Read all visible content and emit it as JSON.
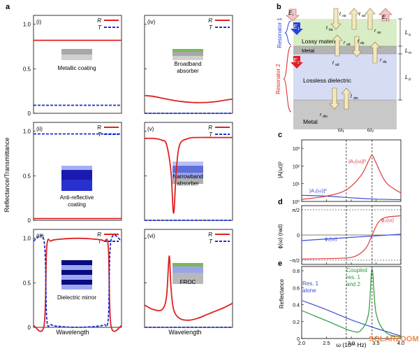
{
  "panel_labels": {
    "a": "a",
    "b": "b",
    "c": "c",
    "d": "d",
    "e": "e"
  },
  "colors": {
    "R": "#e02020",
    "T": "#1a2fd0",
    "res1": "#3a4fd8",
    "res2": "#e03a3a",
    "coupled": "#2a9a3a",
    "axis": "#000000",
    "watermark": "#e8752a"
  },
  "panel_a": {
    "ylabel": "Reflectance/Transmittance",
    "xlabel": "Wavelength",
    "legend": {
      "R": "R",
      "T": "T"
    },
    "yticks": [
      "0",
      "0.5",
      "1.0"
    ],
    "subplots": [
      {
        "label": "(i)",
        "caption": "Metallic coating"
      },
      {
        "label": "(iv)",
        "caption": "Broadband absorber"
      },
      {
        "label": "(ii)",
        "caption": "Anti-reflective coating"
      },
      {
        "label": "(v)",
        "caption": "Narrowband absorber"
      },
      {
        "label": "(iii)",
        "caption": "Dielectric mirror"
      },
      {
        "label": "(vi)",
        "caption": "FROC"
      }
    ]
  },
  "panel_b": {
    "E_i": "E",
    "E_i_sub": "i",
    "E_r": "E",
    "E_r_sub": "r",
    "E_1": "E",
    "E_1_sub": "1",
    "E_2": "E",
    "E_2_sub": "2",
    "t_oa": "t",
    "t_oa_sub": "oa",
    "t_ao": "t",
    "t_ao_sub": "ao",
    "r_ao": "r",
    "r_ao_sub": "ao",
    "r_oa": "r",
    "r_oa_sub": "oa",
    "t_ba": "t",
    "t_ba_sub": "ba",
    "r_ad": "r",
    "r_ad_sub": "ad",
    "t_da": "t",
    "t_da_sub": "da",
    "t_ad": "t",
    "t_ad_sub": "ad",
    "r_da": "r",
    "r_da_sub": "da",
    "t_dm": "t",
    "t_dm_sub": "dm",
    "r_dm": "r",
    "r_dm_sub": "dm",
    "lossy": "Lossy material",
    "metal_thin": "Metal",
    "lossless": "Lossless dielectric",
    "metal_sub": "Metal",
    "resonator1": "Resonator 1",
    "resonator2": "Resonator 2",
    "La": "L",
    "La_sub": "a",
    "Lm": "L",
    "Lm_sub": "m",
    "Ld": "L",
    "Ld_sub": "d"
  },
  "panel_c": {
    "ylabel": "|A(ω)|²",
    "yticks": [
      "10⁰",
      "10¹",
      "10²",
      "10³"
    ],
    "omega1": "ω₁",
    "omega2": "ω₂",
    "A1_label": "|A₁(ω)|²",
    "A2_label": "|A₂(ω)|²"
  },
  "panel_d": {
    "ylabel": "ϕ(ω) (rad)",
    "yticks": [
      "π/2",
      "0",
      "−π/2"
    ],
    "phi1_label": "ϕ₁(ω)",
    "phi2_label": "ϕ₂(ω)"
  },
  "panel_e": {
    "ylabel": "Reflectance",
    "xlabel": "ω (10¹⁵ Hz)",
    "yticks": [
      "0",
      "0.2",
      "0.4",
      "0.6",
      "0.8"
    ],
    "xticks": [
      "2.0",
      "2.5",
      "3.0",
      "3.5",
      "4.0"
    ],
    "res1_line1": "Res. 1",
    "res1_line2": "alone",
    "coupled_line1": "Coupled",
    "coupled_line2": "res. 1",
    "coupled_line3": "and 2"
  },
  "watermark": "SOLARZOOM",
  "chart_data": [
    {
      "type": "line",
      "title": "(i) Metallic coating",
      "xlabel": "Wavelength",
      "ylabel": "Reflectance/Transmittance",
      "ylim": [
        0,
        1.1
      ],
      "x": [
        0,
        0.25,
        0.5,
        0.75,
        1.0
      ],
      "series": [
        {
          "name": "R",
          "values": [
            0.82,
            0.82,
            0.82,
            0.82,
            0.82
          ]
        },
        {
          "name": "T",
          "values": [
            0.09,
            0.09,
            0.09,
            0.09,
            0.09
          ]
        }
      ]
    },
    {
      "type": "line",
      "title": "(iv) Broadband absorber",
      "xlabel": "Wavelength",
      "ylabel": "Reflectance/Transmittance",
      "ylim": [
        0,
        1.1
      ],
      "x": [
        0,
        0.1,
        0.2,
        0.3,
        0.4,
        0.5,
        0.6,
        0.7,
        0.8,
        0.9,
        1.0
      ],
      "series": [
        {
          "name": "R",
          "values": [
            0.2,
            0.19,
            0.17,
            0.15,
            0.135,
            0.125,
            0.12,
            0.122,
            0.13,
            0.145,
            0.16
          ]
        },
        {
          "name": "T",
          "values": [
            0.0,
            0.0,
            0.0,
            0.0,
            0.0,
            0.0,
            0.0,
            0.0,
            0.0,
            0.0,
            0.0
          ]
        }
      ]
    },
    {
      "type": "line",
      "title": "(ii) Anti-reflective coating",
      "xlabel": "Wavelength",
      "ylabel": "Reflectance/Transmittance",
      "ylim": [
        0,
        1.1
      ],
      "x": [
        0,
        0.25,
        0.5,
        0.75,
        1.0
      ],
      "series": [
        {
          "name": "R",
          "values": [
            0.02,
            0.02,
            0.02,
            0.02,
            0.02
          ]
        },
        {
          "name": "T",
          "values": [
            0.97,
            0.97,
            0.97,
            0.97,
            0.97
          ]
        }
      ]
    },
    {
      "type": "line",
      "title": "(v) Narrowband absorber",
      "xlabel": "Wavelength",
      "ylabel": "Reflectance/Transmittance",
      "ylim": [
        0,
        1.1
      ],
      "x": [
        0,
        0.1,
        0.2,
        0.25,
        0.3,
        0.33,
        0.36,
        0.4,
        0.5,
        0.6,
        0.8,
        1.0
      ],
      "series": [
        {
          "name": "R",
          "values": [
            0.92,
            0.92,
            0.9,
            0.85,
            0.55,
            0.08,
            0.55,
            0.85,
            0.92,
            0.93,
            0.93,
            0.93
          ]
        },
        {
          "name": "T",
          "values": [
            0.0,
            0.0,
            0.0,
            0.0,
            0.0,
            0.0,
            0.0,
            0.0,
            0.0,
            0.0,
            0.0,
            0.0
          ]
        }
      ]
    },
    {
      "type": "line",
      "title": "(iii) Dielectric mirror",
      "xlabel": "Wavelength",
      "ylabel": "Reflectance/Transmittance",
      "ylim": [
        0,
        1.1
      ],
      "x": [
        0,
        0.12,
        0.15,
        0.2,
        0.3,
        0.5,
        0.7,
        0.8,
        0.85,
        0.88,
        1.0
      ],
      "series": [
        {
          "name": "R",
          "values": [
            0.02,
            0.02,
            0.9,
            0.97,
            0.99,
            1.0,
            0.99,
            0.97,
            0.9,
            0.02,
            0.02
          ]
        },
        {
          "name": "T",
          "values": [
            0.97,
            0.97,
            0.1,
            0.03,
            0.01,
            0.0,
            0.01,
            0.03,
            0.1,
            0.97,
            0.97
          ]
        }
      ]
    },
    {
      "type": "line",
      "title": "(vi) FROC",
      "xlabel": "Wavelength",
      "ylabel": "Reflectance/Transmittance",
      "ylim": [
        0,
        1.1
      ],
      "x": [
        0,
        0.1,
        0.2,
        0.25,
        0.28,
        0.3,
        0.33,
        0.4,
        0.5,
        0.6,
        0.7,
        0.8,
        0.9,
        1.0
      ],
      "series": [
        {
          "name": "R",
          "values": [
            0.25,
            0.2,
            0.2,
            0.35,
            0.8,
            0.45,
            0.2,
            0.1,
            0.08,
            0.1,
            0.14,
            0.18,
            0.22,
            0.27
          ]
        },
        {
          "name": "T",
          "values": [
            0.0,
            0.0,
            0.0,
            0.0,
            0.0,
            0.0,
            0.0,
            0.0,
            0.0,
            0.0,
            0.0,
            0.0,
            0.0,
            0.0
          ]
        }
      ]
    },
    {
      "type": "line",
      "title": "c",
      "xlabel": "",
      "ylabel": "|A(ω)|²",
      "yscale": "log",
      "xlim": [
        2.0,
        4.0
      ],
      "ylim": [
        1,
        3000
      ],
      "series": [
        {
          "name": "|A₁(ω)|²",
          "x": [
            2.0,
            2.5,
            3.0,
            3.5,
            4.0
          ],
          "values": [
            2.2,
            2.0,
            1.6,
            1.35,
            1.25
          ]
        },
        {
          "name": "|A₂(ω)|²",
          "x": [
            2.0,
            2.5,
            2.9,
            3.2,
            3.35,
            3.42,
            3.5,
            3.7,
            4.0
          ],
          "values": [
            1.3,
            2.0,
            4.5,
            30,
            200,
            400,
            150,
            12,
            3
          ]
        }
      ],
      "annotations": [
        {
          "text": "ω₁",
          "x": 2.9
        },
        {
          "text": "ω₂",
          "x": 3.42
        }
      ]
    },
    {
      "type": "line",
      "title": "d",
      "xlabel": "",
      "ylabel": "ϕ(ω) (rad)",
      "xlim": [
        2.0,
        4.0
      ],
      "series": [
        {
          "name": "ϕ₁(ω)",
          "x": [
            2.0,
            3.0,
            4.0
          ],
          "values": [
            -0.35,
            -0.15,
            0.05
          ]
        },
        {
          "name": "ϕ₂(ω)",
          "x": [
            2.0,
            2.8,
            3.1,
            3.3,
            3.42,
            3.55,
            3.7,
            4.0
          ],
          "values": [
            -1.5,
            -1.45,
            -1.3,
            -0.8,
            0.0,
            0.8,
            1.1,
            1.2
          ]
        }
      ]
    },
    {
      "type": "line",
      "title": "e",
      "xlabel": "ω (10¹⁵ Hz)",
      "ylabel": "Reflectance",
      "xlim": [
        2.0,
        4.0
      ],
      "ylim": [
        0,
        0.85
      ],
      "series": [
        {
          "name": "Res. 1 alone",
          "x": [
            2.0,
            2.5,
            3.0,
            3.5,
            4.0
          ],
          "values": [
            0.45,
            0.34,
            0.22,
            0.12,
            0.03
          ]
        },
        {
          "name": "Coupled res. 1 and 2",
          "x": [
            2.0,
            2.5,
            3.0,
            3.2,
            3.35,
            3.42,
            3.5,
            3.7,
            4.0
          ],
          "values": [
            0.33,
            0.21,
            0.09,
            0.1,
            0.3,
            0.82,
            0.3,
            0.07,
            0.02
          ]
        }
      ]
    }
  ]
}
